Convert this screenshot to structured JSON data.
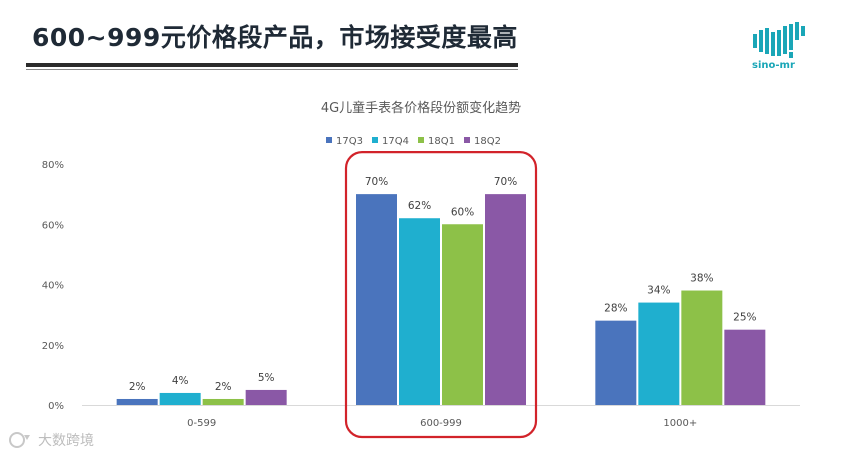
{
  "slide": {
    "title": "600~999元价格段产品，市场接受度最高",
    "logo_text": "sino-mr",
    "watermark_text": "大数跨境",
    "logo_icon": "map-of-china-dots-icon",
    "watermark_icon": "watermark-logo-icon"
  },
  "chart_data": {
    "type": "bar",
    "title": "4G儿童手表各价格段份额变化趋势",
    "categories": [
      "0-599",
      "600-999",
      "1000+"
    ],
    "series": [
      {
        "name": "17Q3",
        "color": "#4a74bd",
        "values": [
          2,
          70,
          28
        ]
      },
      {
        "name": "17Q4",
        "color": "#1fafcf",
        "values": [
          4,
          62,
          34
        ]
      },
      {
        "name": "18Q1",
        "color": "#8dc148",
        "values": [
          2,
          60,
          38
        ]
      },
      {
        "name": "18Q2",
        "color": "#8a58a6",
        "values": [
          5,
          70,
          25
        ]
      }
    ],
    "yticks": [
      "0%",
      "20%",
      "40%",
      "60%",
      "80%"
    ],
    "ylim": [
      0,
      80
    ],
    "value_suffix": "%",
    "legend_position": "top",
    "highlight_category": "600-999",
    "highlight_color": "#d2232a",
    "grid": false
  }
}
